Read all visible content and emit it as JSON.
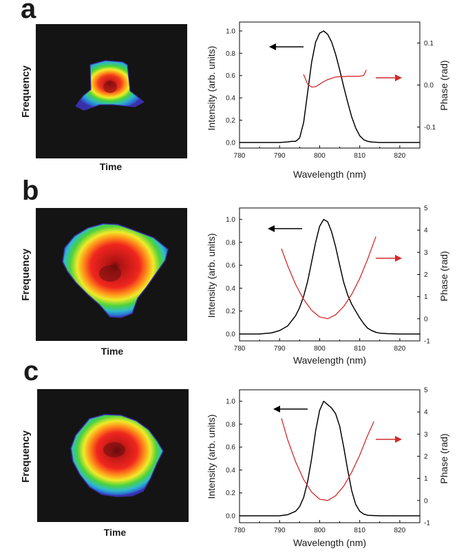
{
  "colors": {
    "intensity": "#000000",
    "phase": "#d42a2a",
    "arrow_left": "#000000",
    "arrow_right": "#d42a2a",
    "spectrogram_bg": "#141414"
  },
  "panels": [
    {
      "letter": "a",
      "spectrogram": {
        "ylabel": "Frequency",
        "xlabel": "Time",
        "shape": "trapezoid"
      },
      "chart_labels": {
        "xlabel": "Wavelength (nm)",
        "ylabel": "Intensity (arb. units)",
        "y2label": "Phase (rad)"
      }
    },
    {
      "letter": "b",
      "spectrogram": {
        "ylabel": "Frequency",
        "xlabel": "Time",
        "shape": "large-pentagon"
      },
      "chart_labels": {
        "xlabel": "Wavelength (nm)",
        "ylabel": "Intensity (arb. units)",
        "y2label": "Phase (rad)"
      }
    },
    {
      "letter": "c",
      "spectrogram": {
        "ylabel": "Frequency",
        "xlabel": "Time",
        "shape": "round"
      },
      "chart_labels": {
        "xlabel": "Wavelength (nm)",
        "ylabel": "Intensity (arb. units)",
        "y2label": "Phase (rad)"
      }
    }
  ],
  "chart_data": [
    {
      "type": "line",
      "title": "a",
      "xlabel": "Wavelength (nm)",
      "ylabel": "Intensity (arb. units)",
      "y2label": "Phase (rad)",
      "xlim": [
        780,
        825
      ],
      "ylim": [
        -0.05,
        1.08
      ],
      "y2lim": [
        -0.15,
        0.15
      ],
      "xticks": [
        780,
        790,
        800,
        810,
        820
      ],
      "yticks": [
        0.0,
        0.2,
        0.4,
        0.6,
        0.8,
        1.0
      ],
      "y2ticks": [
        -0.1,
        0.0,
        0.1
      ],
      "xtick_labels": [
        "780",
        "790",
        "800",
        "810",
        "820"
      ],
      "ytick_labels": [
        "0.0",
        "0.2",
        "0.4",
        "0.6",
        "0.8",
        "1.0"
      ],
      "y2tick_labels": [
        "-0.1",
        "0.0",
        "0.1"
      ],
      "series": [
        {
          "name": "Intensity",
          "axis": "left",
          "x": [
            780,
            790,
            792,
            793,
            794,
            795,
            796,
            797,
            798,
            799,
            800,
            801,
            802,
            803,
            804,
            805,
            806,
            807,
            808,
            809,
            810,
            811,
            812,
            813,
            815,
            820,
            825
          ],
          "y": [
            0.0,
            0.0,
            0.005,
            0.01,
            0.01,
            0.04,
            0.18,
            0.45,
            0.72,
            0.9,
            0.98,
            1.0,
            0.97,
            0.9,
            0.79,
            0.65,
            0.5,
            0.36,
            0.23,
            0.13,
            0.06,
            0.025,
            0.01,
            0.004,
            0.0,
            0.0,
            0.0
          ]
        },
        {
          "name": "Phase",
          "axis": "right",
          "x": [
            796,
            797,
            798,
            799,
            800,
            801,
            802,
            803,
            804,
            805,
            806,
            807,
            808,
            809,
            810,
            811,
            811.6
          ],
          "y": [
            0.025,
            0.002,
            -0.005,
            -0.004,
            0.002,
            0.008,
            0.013,
            0.016,
            0.019,
            0.02,
            0.02,
            0.021,
            0.021,
            0.021,
            0.021,
            0.023,
            0.035
          ]
        }
      ],
      "annotations": [
        {
          "type": "arrow",
          "direction": "left",
          "axis": "left"
        },
        {
          "type": "arrow",
          "direction": "right",
          "axis": "right"
        }
      ]
    },
    {
      "type": "line",
      "title": "b",
      "xlabel": "Wavelength (nm)",
      "ylabel": "Intensity (arb. units)",
      "y2label": "Phase (rad)",
      "xlim": [
        780,
        825
      ],
      "ylim": [
        -0.06,
        1.1
      ],
      "y2lim": [
        -1,
        5
      ],
      "xticks": [
        780,
        790,
        800,
        810,
        820
      ],
      "yticks": [
        0.0,
        0.2,
        0.4,
        0.6,
        0.8,
        1.0
      ],
      "y2ticks": [
        -1,
        0,
        1,
        2,
        3,
        4,
        5
      ],
      "xtick_labels": [
        "780",
        "790",
        "800",
        "810",
        "820"
      ],
      "ytick_labels": [
        "0.0",
        "0.2",
        "0.4",
        "0.6",
        "0.8",
        "1.0"
      ],
      "y2tick_labels": [
        "-1",
        "0",
        "1",
        "2",
        "3",
        "4",
        "5"
      ],
      "series": [
        {
          "name": "Intensity",
          "axis": "left",
          "x": [
            780,
            785,
            788,
            790,
            792,
            794,
            795,
            796,
            797,
            798,
            799,
            800,
            801,
            802,
            803,
            804,
            805,
            806,
            807,
            808,
            809,
            810,
            811,
            812,
            813,
            814,
            815,
            817,
            820,
            825
          ],
          "y": [
            0.0,
            0.0,
            0.01,
            0.03,
            0.07,
            0.16,
            0.23,
            0.33,
            0.46,
            0.63,
            0.8,
            0.94,
            1.0,
            0.98,
            0.89,
            0.76,
            0.6,
            0.45,
            0.34,
            0.26,
            0.2,
            0.14,
            0.09,
            0.05,
            0.03,
            0.015,
            0.008,
            0.003,
            0.0,
            0.0
          ]
        },
        {
          "name": "Phase",
          "axis": "right",
          "x": [
            790.5,
            792,
            794,
            796,
            798,
            800,
            802,
            804,
            806,
            808,
            810,
            812,
            814
          ],
          "y": [
            3.15,
            2.4,
            1.55,
            0.87,
            0.38,
            0.08,
            0.0,
            0.18,
            0.55,
            1.1,
            1.82,
            2.7,
            3.7
          ]
        }
      ],
      "annotations": [
        {
          "type": "arrow",
          "direction": "left",
          "axis": "left"
        },
        {
          "type": "arrow",
          "direction": "right",
          "axis": "right"
        }
      ]
    },
    {
      "type": "line",
      "title": "c",
      "xlabel": "Wavelength (nm)",
      "ylabel": "Intensity (arb. units)",
      "y2label": "Phase (rad)",
      "xlim": [
        780,
        825
      ],
      "ylim": [
        -0.06,
        1.1
      ],
      "y2lim": [
        -1,
        5
      ],
      "xticks": [
        780,
        790,
        800,
        810,
        820
      ],
      "yticks": [
        0.0,
        0.2,
        0.4,
        0.6,
        0.8,
        1.0
      ],
      "y2ticks": [
        -1,
        0,
        1,
        2,
        3,
        4,
        5
      ],
      "xtick_labels": [
        "780",
        "790",
        "800",
        "810",
        "820"
      ],
      "ytick_labels": [
        "0.0",
        "0.2",
        "0.4",
        "0.6",
        "0.8",
        "1.0"
      ],
      "y2tick_labels": [
        "-1",
        "0",
        "1",
        "2",
        "3",
        "4",
        "5"
      ],
      "series": [
        {
          "name": "Intensity",
          "axis": "left",
          "x": [
            780,
            790,
            792,
            794,
            795,
            796,
            797,
            798,
            799,
            800,
            801,
            802,
            803,
            804,
            805,
            806,
            807,
            808,
            809,
            810,
            811,
            812,
            815,
            820,
            825
          ],
          "y": [
            0.0,
            0.0,
            0.01,
            0.04,
            0.08,
            0.16,
            0.3,
            0.5,
            0.74,
            0.92,
            1.0,
            0.97,
            0.94,
            0.89,
            0.78,
            0.6,
            0.4,
            0.22,
            0.1,
            0.04,
            0.015,
            0.005,
            0.0,
            0.0,
            0.0
          ]
        },
        {
          "name": "Phase",
          "axis": "right",
          "x": [
            790.5,
            792,
            794,
            796,
            798,
            800,
            802,
            804,
            806,
            808,
            810,
            812,
            813.5
          ],
          "y": [
            3.7,
            2.75,
            1.75,
            0.95,
            0.38,
            0.06,
            0.0,
            0.22,
            0.65,
            1.28,
            2.05,
            2.95,
            3.55
          ]
        }
      ],
      "annotations": [
        {
          "type": "arrow",
          "direction": "left",
          "axis": "left"
        },
        {
          "type": "arrow",
          "direction": "right",
          "axis": "right"
        }
      ]
    }
  ]
}
